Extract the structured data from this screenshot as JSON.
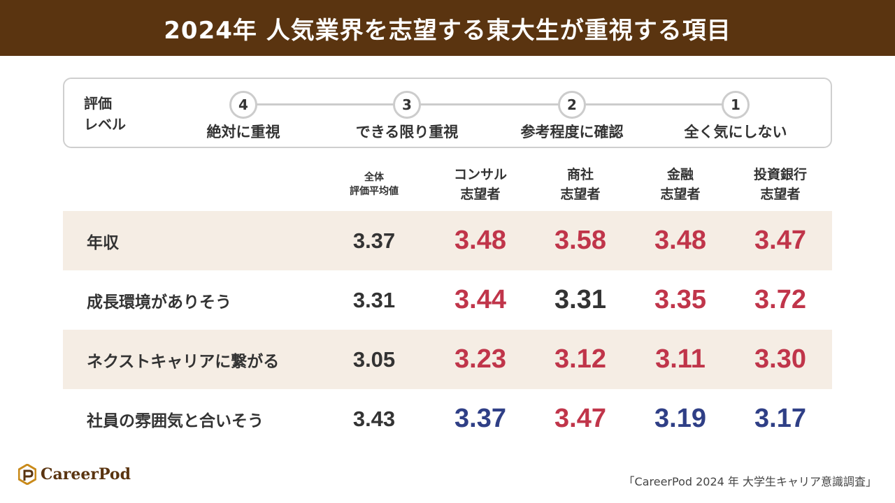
{
  "header": {
    "title": "2024年 人気業界を志望する東大生が重視する項目"
  },
  "scale": {
    "label_line1": "評価",
    "label_line2": "レベル",
    "levels": [
      {
        "num": "4",
        "text": "絶対に重視"
      },
      {
        "num": "3",
        "text": "できる限り重視"
      },
      {
        "num": "2",
        "text": "参考程度に確認"
      },
      {
        "num": "1",
        "text": "全く気にしない"
      }
    ]
  },
  "chart_data": {
    "type": "table",
    "columns": [
      {
        "line1": "全体",
        "line2": "評価平均値"
      },
      {
        "line1": "コンサル",
        "line2": "志望者"
      },
      {
        "line1": "商社",
        "line2": "志望者"
      },
      {
        "line1": "金融",
        "line2": "志望者"
      },
      {
        "line1": "投資銀行",
        "line2": "志望者"
      }
    ],
    "rows": [
      {
        "label": "年収",
        "values": [
          "3.37",
          "3.48",
          "3.58",
          "3.48",
          "3.47"
        ]
      },
      {
        "label": "成長環境がありそう",
        "values": [
          "3.31",
          "3.44",
          "3.31",
          "3.35",
          "3.72"
        ]
      },
      {
        "label": "ネクストキャリアに繋がる",
        "values": [
          "3.05",
          "3.23",
          "3.12",
          "3.11",
          "3.30"
        ]
      },
      {
        "label": "社員の雰囲気と合いそう",
        "values": [
          "3.43",
          "3.37",
          "3.47",
          "3.19",
          "3.17"
        ]
      }
    ]
  },
  "colors": {
    "higher": "#c0354a",
    "lower": "#2f3f86",
    "equal": "#333333",
    "header_bg": "#5a3410",
    "row_shade": "#f5ede4"
  },
  "footer": {
    "brand": "CareerPod",
    "source": "「CareerPod 2024 年 大学生キャリア意識調査」"
  }
}
